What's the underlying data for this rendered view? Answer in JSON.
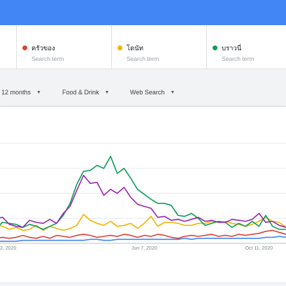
{
  "search_terms": [
    {
      "label": "ครัวของ",
      "sub": "Search term",
      "color": "#db4437"
    },
    {
      "label": "โดนัท",
      "sub": "Search term",
      "color": "#f4b400"
    },
    {
      "label": "บราวนี่",
      "sub": "Search term",
      "color": "#0f9d58"
    }
  ],
  "filters": {
    "time_range": "12 months",
    "category": "Food & Drink",
    "search_type": "Web Search"
  },
  "chart_data": {
    "type": "line",
    "x_tick_labels": [
      "2, 2020",
      "Jun 7, 2020",
      "Oct 11, 2020"
    ],
    "ylim": [
      0,
      100
    ],
    "grid": true,
    "series": [
      {
        "name": "",
        "color": "#4285f4",
        "values": [
          2,
          2,
          2,
          2,
          3,
          3,
          3,
          3,
          3,
          3,
          3,
          3,
          3,
          3,
          4,
          4,
          3,
          3,
          4,
          4,
          4,
          4,
          4,
          4,
          4,
          4,
          4,
          4,
          5,
          4,
          5,
          5,
          5,
          5,
          5,
          5,
          5,
          5,
          5,
          5,
          6,
          6,
          7,
          6
        ]
      },
      {
        "name": "ครัวของ",
        "color": "#db4437",
        "values": [
          5,
          6,
          5,
          6,
          8,
          6,
          5,
          7,
          5,
          8,
          7,
          6,
          8,
          9,
          8,
          6,
          7,
          8,
          7,
          9,
          8,
          6,
          8,
          7,
          9,
          8,
          6,
          5,
          7,
          8,
          7,
          8,
          9,
          7,
          8,
          7,
          9,
          8,
          9,
          10,
          12,
          13,
          11,
          9
        ]
      },
      {
        "name": "โดนัท",
        "color": "#f4b400",
        "values": [
          19,
          17,
          14,
          16,
          13,
          14,
          18,
          13,
          17,
          15,
          13,
          15,
          18,
          29,
          23,
          20,
          18,
          22,
          17,
          18,
          20,
          15,
          20,
          27,
          17,
          21,
          21,
          20,
          18,
          18,
          20,
          20,
          22,
          21,
          22,
          20,
          19,
          17,
          19,
          22,
          26,
          22,
          21,
          16
        ]
      },
      {
        "name": "บราวนี่",
        "color": "#0f9d58",
        "values": [
          15,
          21,
          20,
          19,
          16,
          19,
          17,
          14,
          17,
          20,
          28,
          40,
          59,
          72,
          73,
          78,
          75,
          87,
          70,
          75,
          65,
          54,
          49,
          44,
          40,
          40,
          38,
          28,
          27,
          30,
          25,
          18,
          20,
          22,
          21,
          16,
          20,
          17,
          22,
          17,
          28,
          17,
          14,
          14
        ]
      },
      {
        "name": "",
        "color": "#9c27b0",
        "values": [
          25,
          26,
          19,
          17,
          16,
          23,
          21,
          20,
          24,
          20,
          30,
          37,
          53,
          68,
          60,
          61,
          48,
          54,
          50,
          56,
          46,
          39,
          37,
          35,
          26,
          27,
          23,
          24,
          22,
          24,
          26,
          22,
          23,
          21,
          21,
          24,
          23,
          22,
          24,
          30,
          21,
          22,
          18,
          16
        ]
      }
    ]
  }
}
